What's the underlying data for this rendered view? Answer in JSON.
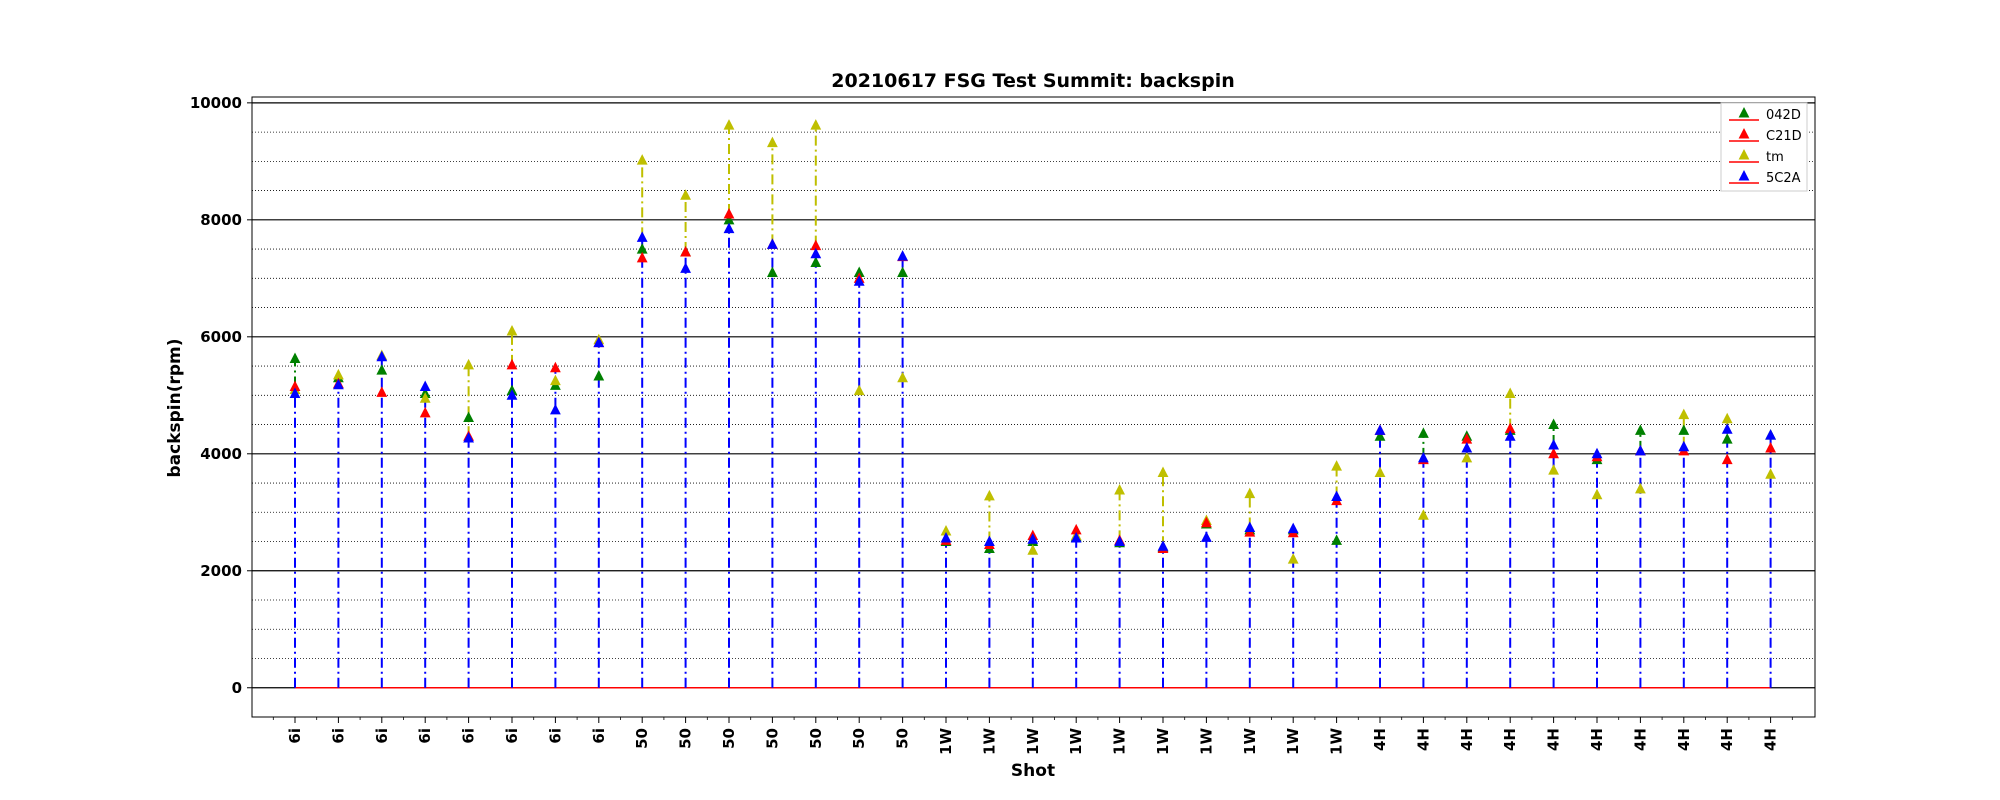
{
  "chart_data": {
    "type": "scatter",
    "title": "20210617 FSG Test Summit: backspin",
    "xlabel": "Shot",
    "ylabel": "backspin(rpm)",
    "ylim": [
      -500,
      10100
    ],
    "yticks": [
      0,
      2000,
      4000,
      6000,
      8000,
      10000
    ],
    "grid": "major solid, minor dotted (every 500)",
    "legend_position": "top-right",
    "categories": [
      "6i",
      "6i",
      "6i",
      "6i",
      "6i",
      "6i",
      "6i",
      "6i",
      "50",
      "50",
      "50",
      "50",
      "50",
      "50",
      "50",
      "1W",
      "1W",
      "1W",
      "1W",
      "1W",
      "1W",
      "1W",
      "1W",
      "1W",
      "1W",
      "4H",
      "4H",
      "4H",
      "4H",
      "4H",
      "4H",
      "4H",
      "4H",
      "4H",
      "4H"
    ],
    "series": [
      {
        "name": "042D",
        "color": "#008000",
        "marker": "triangle-up",
        "values": [
          5630,
          5300,
          5430,
          5030,
          4620,
          5080,
          5170,
          5330,
          7500,
          7450,
          8000,
          7100,
          7270,
          7100,
          7100,
          2500,
          2380,
          2500,
          2580,
          2480,
          2400,
          2800,
          2700,
          2700,
          2520,
          4300,
          4350,
          4300,
          4400,
          4500,
          3900,
          4400,
          4400,
          4250,
          4320
        ]
      },
      {
        "name": "C21D",
        "color": "#ff0000",
        "marker": "triangle-up",
        "values": [
          5150,
          5200,
          5050,
          4700,
          4300,
          5520,
          5470,
          5900,
          7350,
          7450,
          8100,
          7580,
          7560,
          7000,
          7370,
          2520,
          2450,
          2600,
          2700,
          2520,
          2380,
          2820,
          2660,
          2650,
          3200,
          4400,
          3900,
          4250,
          4430,
          4000,
          3950,
          4050,
          4050,
          3900,
          4100
        ]
      },
      {
        "name": "tm",
        "color": "#bfbf00",
        "marker": "triangle-up",
        "values": [
          5100,
          5350,
          5680,
          4950,
          5520,
          6100,
          5250,
          5950,
          9020,
          8420,
          9620,
          9320,
          9620,
          5080,
          5300,
          2680,
          3280,
          2350,
          2600,
          3380,
          3680,
          2860,
          3320,
          2200,
          3790,
          3680,
          2950,
          3930,
          5030,
          3720,
          3300,
          3400,
          4670,
          4600,
          3650
        ]
      },
      {
        "name": "5C2A",
        "color": "#0000ff",
        "marker": "triangle-up",
        "values": [
          5030,
          5180,
          5660,
          5150,
          4270,
          5000,
          4750,
          5900,
          7700,
          7170,
          7850,
          7580,
          7420,
          6950,
          7380,
          2560,
          2500,
          2540,
          2560,
          2500,
          2420,
          2570,
          2740,
          2720,
          3270,
          4400,
          3930,
          4100,
          4300,
          4150,
          4000,
          4050,
          4120,
          4420,
          4320
        ]
      }
    ],
    "baseline": {
      "value": 0,
      "color": "#ff0000"
    },
    "stem_color": "#0000ff"
  }
}
